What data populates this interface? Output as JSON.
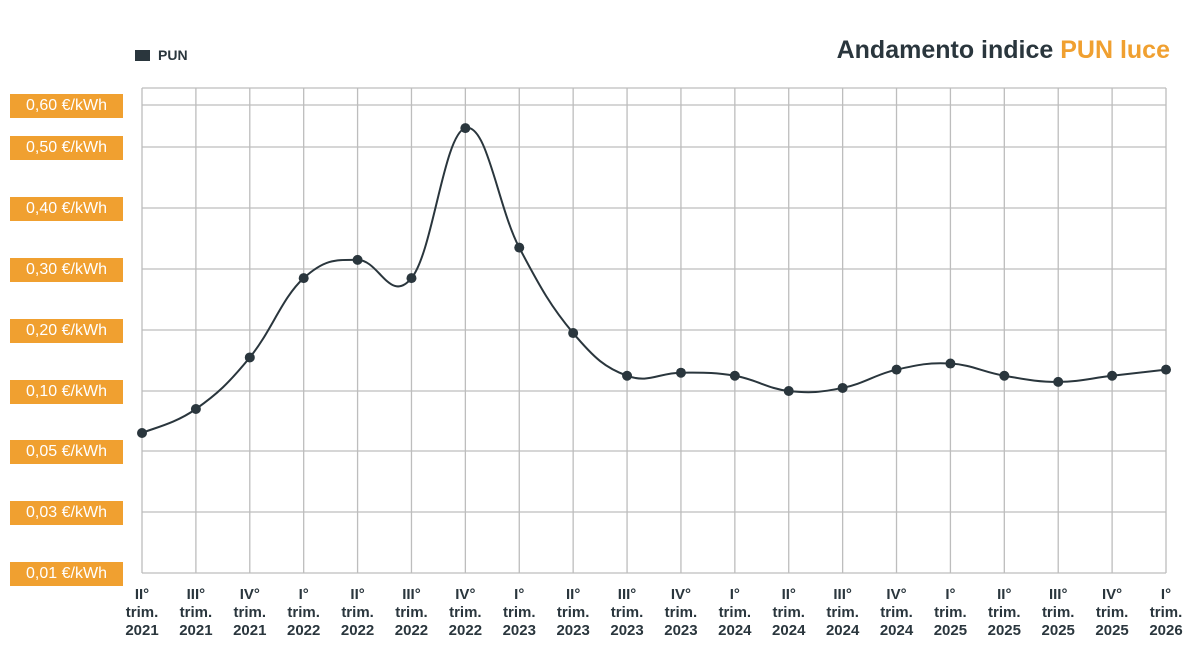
{
  "title": {
    "prefix": "Andamento indice ",
    "highlight": "PUN luce"
  },
  "colors": {
    "accent": "#f0a030",
    "series": "#2a363d",
    "grid": "#bdbdbd"
  },
  "chart_data": {
    "type": "line",
    "legend": {
      "position": "top-left"
    },
    "series": [
      {
        "name": "PUN",
        "values": [
          0.065,
          0.085,
          0.155,
          0.285,
          0.315,
          0.285,
          0.545,
          0.335,
          0.195,
          0.125,
          0.13,
          0.125,
          0.1,
          0.105,
          0.135,
          0.145,
          0.125,
          0.115,
          0.125,
          0.135
        ]
      }
    ],
    "categories": [
      {
        "line1": "II°",
        "line2": "trim.",
        "line3": "2021"
      },
      {
        "line1": "III°",
        "line2": "trim.",
        "line3": "2021"
      },
      {
        "line1": "IV°",
        "line2": "trim.",
        "line3": "2021"
      },
      {
        "line1": "I°",
        "line2": "trim.",
        "line3": "2022"
      },
      {
        "line1": "II°",
        "line2": "trim.",
        "line3": "2022"
      },
      {
        "line1": "III°",
        "line2": "trim.",
        "line3": "2022"
      },
      {
        "line1": "IV°",
        "line2": "trim.",
        "line3": "2022"
      },
      {
        "line1": "I°",
        "line2": "trim.",
        "line3": "2023"
      },
      {
        "line1": "II°",
        "line2": "trim.",
        "line3": "2023"
      },
      {
        "line1": "III°",
        "line2": "trim.",
        "line3": "2023"
      },
      {
        "line1": "IV°",
        "line2": "trim.",
        "line3": "2023"
      },
      {
        "line1": "I°",
        "line2": "trim.",
        "line3": "2024"
      },
      {
        "line1": "II°",
        "line2": "trim.",
        "line3": "2024"
      },
      {
        "line1": "III°",
        "line2": "trim.",
        "line3": "2024"
      },
      {
        "line1": "IV°",
        "line2": "trim.",
        "line3": "2024"
      },
      {
        "line1": "I°",
        "line2": "trim.",
        "line3": "2025"
      },
      {
        "line1": "II°",
        "line2": "trim.",
        "line3": "2025"
      },
      {
        "line1": "III°",
        "line2": "trim.",
        "line3": "2025"
      },
      {
        "line1": "IV°",
        "line2": "trim.",
        "line3": "2025"
      },
      {
        "line1": "I°",
        "line2": "trim.",
        "line3": "2026"
      }
    ],
    "y_axis": {
      "scale": "non-linear (tick-indexed)",
      "ticks": [
        {
          "value": 0.6,
          "label": "0,60 €/kWh"
        },
        {
          "value": 0.5,
          "label": "0,50 €/kWh"
        },
        {
          "value": 0.4,
          "label": "0,40 €/kWh"
        },
        {
          "value": 0.3,
          "label": "0,30 €/kWh"
        },
        {
          "value": 0.2,
          "label": "0,20 €/kWh"
        },
        {
          "value": 0.1,
          "label": "0,10 €/kWh"
        },
        {
          "value": 0.05,
          "label": "0,05 €/kWh"
        },
        {
          "value": 0.03,
          "label": "0,03 €/kWh"
        },
        {
          "value": 0.01,
          "label": "0,01 €/kWh"
        }
      ]
    },
    "grid": true
  }
}
